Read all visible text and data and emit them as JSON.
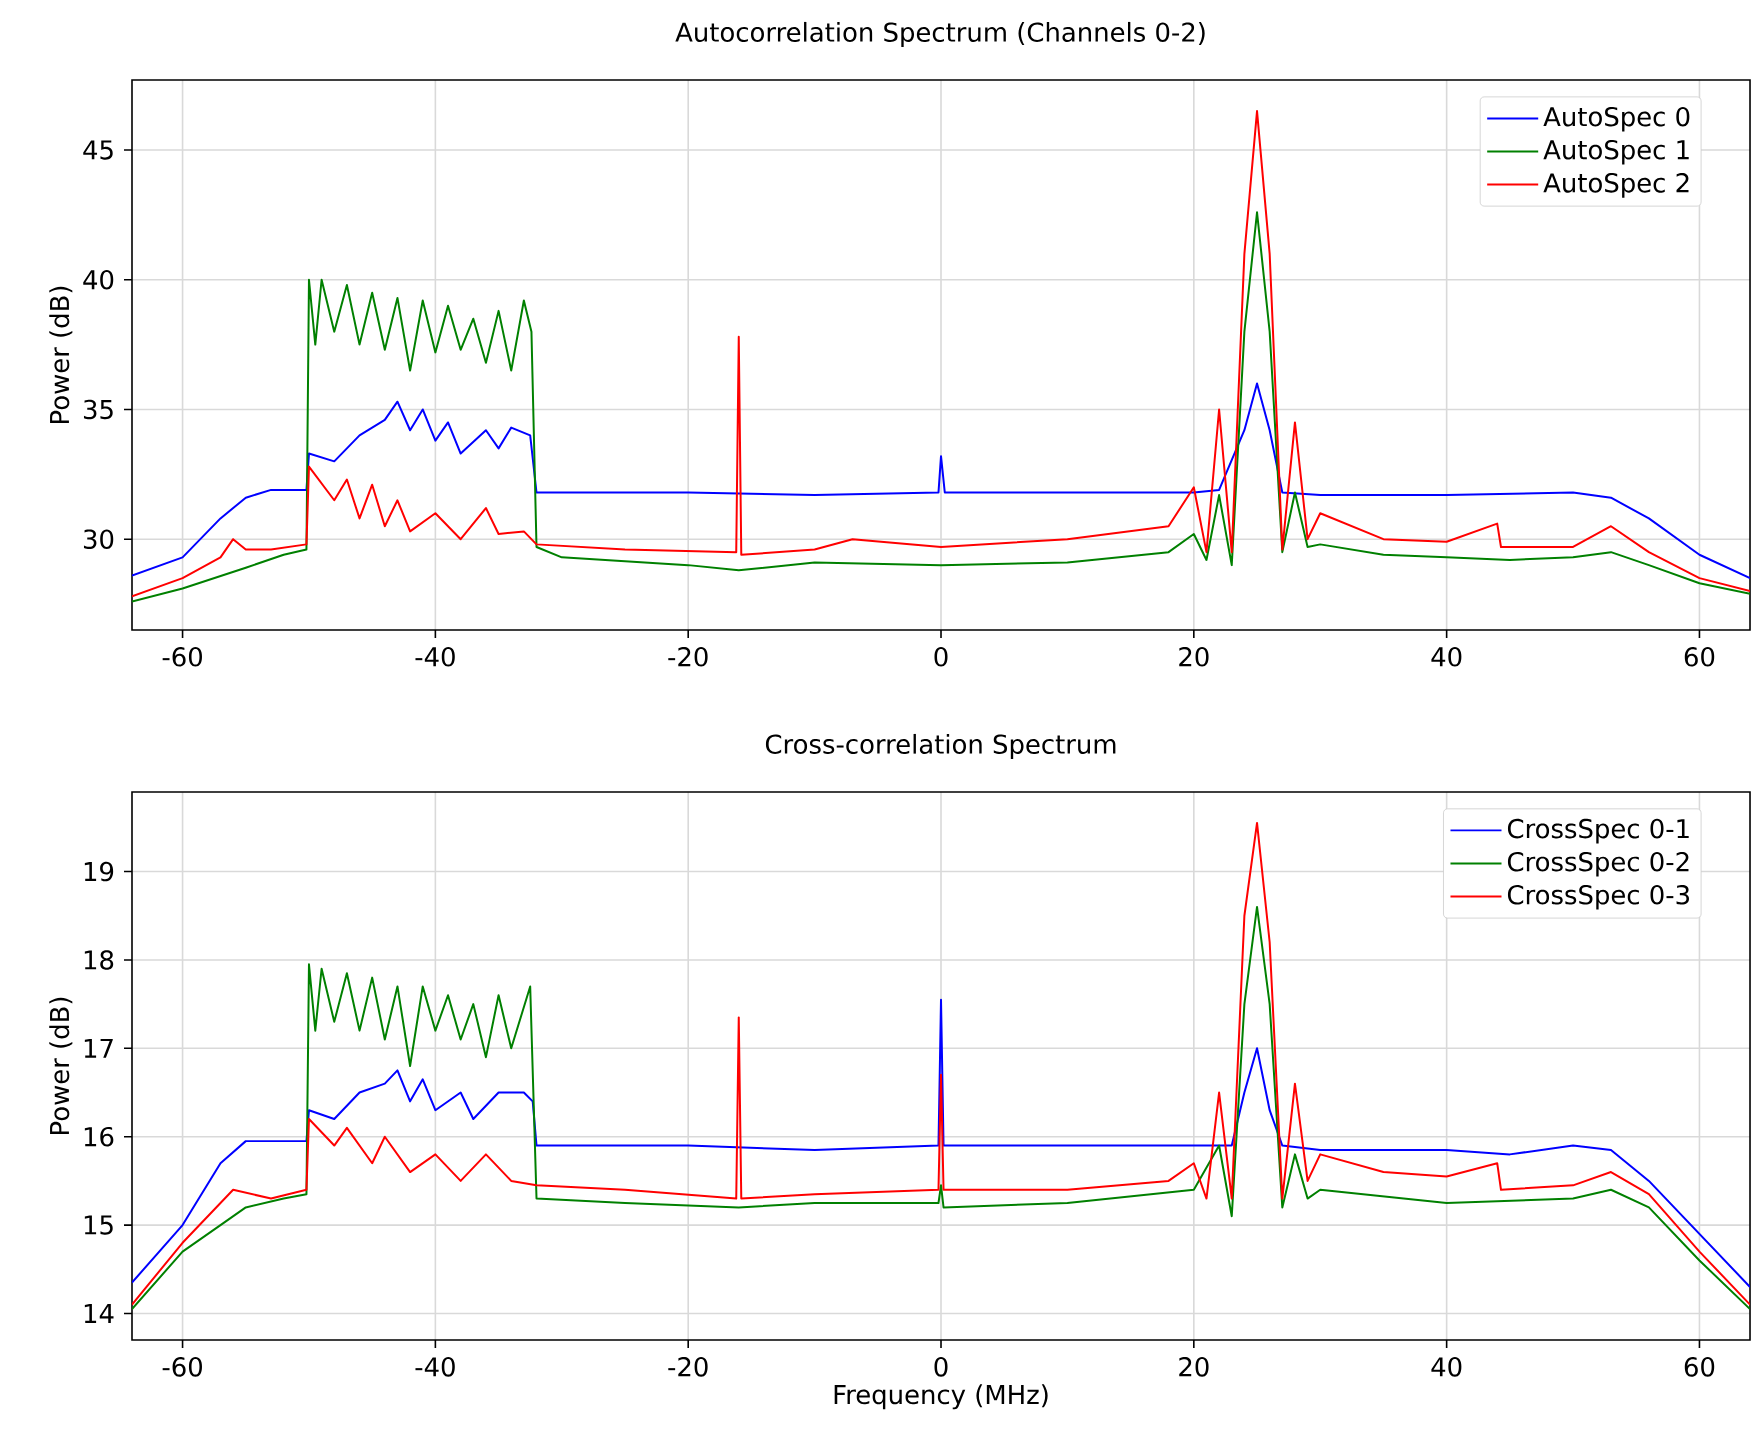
{
  "chart_data": [
    {
      "type": "line",
      "title": "Autocorrelation Spectrum (Channels 0-2)",
      "ylabel": "Power (dB)",
      "xlim": [
        -64,
        64
      ],
      "ylim": [
        26.5,
        47.7
      ],
      "xticks": [
        -60,
        -40,
        -20,
        0,
        20,
        40,
        60
      ],
      "yticks": [
        30,
        35,
        40,
        45
      ],
      "grid": true,
      "legend": "top right",
      "series": [
        {
          "name": "AutoSpec 0",
          "color": "#0000ff",
          "x": [
            -64,
            -60,
            -57,
            -55,
            -53,
            -50.2,
            -50,
            -48,
            -46,
            -44,
            -43,
            -42,
            -41,
            -40,
            -39,
            -38,
            -36,
            -35,
            -34,
            -32.5,
            -32,
            -20,
            -10,
            -0.2,
            0,
            0.3,
            10,
            20,
            22,
            24,
            25,
            26,
            27,
            30,
            40,
            50,
            53,
            56,
            60,
            64
          ],
          "values": [
            28.6,
            29.3,
            30.8,
            31.6,
            31.9,
            31.9,
            33.3,
            33.0,
            34.0,
            34.6,
            35.3,
            34.2,
            35.0,
            33.8,
            34.5,
            33.3,
            34.2,
            33.5,
            34.3,
            34.0,
            31.8,
            31.8,
            31.7,
            31.8,
            33.2,
            31.8,
            31.8,
            31.8,
            31.9,
            34.2,
            36.0,
            34.2,
            31.8,
            31.7,
            31.7,
            31.8,
            31.6,
            30.8,
            29.4,
            28.5
          ]
        },
        {
          "name": "AutoSpec 1",
          "color": "#008000",
          "x": [
            -64,
            -60,
            -55,
            -52,
            -50.2,
            -50,
            -49.5,
            -49,
            -48,
            -47,
            -46,
            -45,
            -44,
            -43,
            -42,
            -41,
            -40,
            -39,
            -38,
            -37,
            -36,
            -35,
            -34,
            -33,
            -32.4,
            -32,
            -30,
            -20,
            -16,
            -10,
            0,
            10,
            18,
            20,
            21,
            22,
            23,
            24,
            25,
            26,
            27,
            28,
            29,
            30,
            35,
            40,
            45,
            50,
            53,
            56,
            60,
            64
          ],
          "values": [
            27.6,
            28.1,
            28.9,
            29.4,
            29.6,
            40.0,
            37.5,
            40.0,
            38.0,
            39.8,
            37.5,
            39.5,
            37.3,
            39.3,
            36.5,
            39.2,
            37.2,
            39.0,
            37.3,
            38.5,
            36.8,
            38.8,
            36.5,
            39.2,
            38.0,
            29.7,
            29.3,
            29.0,
            28.8,
            29.1,
            29.0,
            29.1,
            29.5,
            30.2,
            29.2,
            31.7,
            29.0,
            38.0,
            42.6,
            38.0,
            29.5,
            31.8,
            29.7,
            29.8,
            29.4,
            29.3,
            29.2,
            29.3,
            29.5,
            29.0,
            28.3,
            27.9
          ]
        },
        {
          "name": "AutoSpec 2",
          "color": "#ff0000",
          "x": [
            -64,
            -60,
            -57,
            -56,
            -55,
            -53,
            -50.2,
            -50,
            -48,
            -47,
            -46,
            -45,
            -44,
            -43,
            -42,
            -40,
            -38,
            -36,
            -35,
            -33,
            -32,
            -25,
            -16.2,
            -16,
            -15.8,
            -10,
            -7,
            0,
            10,
            18,
            20,
            21,
            22,
            23,
            24,
            25,
            26,
            27,
            28,
            29,
            30,
            35,
            40,
            44,
            44.3,
            50,
            53,
            56,
            60,
            64
          ],
          "values": [
            27.8,
            28.5,
            29.3,
            30.0,
            29.6,
            29.6,
            29.8,
            32.8,
            31.5,
            32.3,
            30.8,
            32.1,
            30.5,
            31.5,
            30.3,
            31.0,
            30.0,
            31.2,
            30.2,
            30.3,
            29.8,
            29.6,
            29.5,
            37.8,
            29.4,
            29.6,
            30.0,
            29.7,
            30.0,
            30.5,
            32.0,
            29.5,
            35.0,
            29.5,
            41.0,
            46.5,
            41.0,
            29.6,
            34.5,
            30.0,
            31.0,
            30.0,
            29.9,
            30.6,
            29.7,
            29.7,
            30.5,
            29.5,
            28.5,
            28.0
          ]
        }
      ]
    },
    {
      "type": "line",
      "title": "Cross-correlation Spectrum",
      "xlabel": "Frequency (MHz)",
      "ylabel": "Power (dB)",
      "xlim": [
        -64,
        64
      ],
      "ylim": [
        13.7,
        19.9
      ],
      "xticks": [
        -60,
        -40,
        -20,
        0,
        20,
        40,
        60
      ],
      "yticks": [
        14,
        15,
        16,
        17,
        18,
        19
      ],
      "grid": true,
      "legend": "top right",
      "series": [
        {
          "name": "CrossSpec 0-1",
          "color": "#0000ff",
          "x": [
            -64,
            -60,
            -57,
            -55,
            -50.2,
            -50,
            -48,
            -46,
            -44,
            -43,
            -42,
            -41,
            -40,
            -38,
            -37,
            -35,
            -33,
            -32.3,
            -32,
            -20,
            -10,
            -0.2,
            0,
            0.2,
            10,
            20,
            23,
            24,
            25,
            26,
            27,
            30,
            40,
            45,
            50,
            53,
            56,
            60,
            64
          ],
          "values": [
            14.35,
            15.0,
            15.7,
            15.95,
            15.95,
            16.3,
            16.2,
            16.5,
            16.6,
            16.75,
            16.4,
            16.65,
            16.3,
            16.5,
            16.2,
            16.5,
            16.5,
            16.4,
            15.9,
            15.9,
            15.85,
            15.9,
            17.55,
            15.9,
            15.9,
            15.9,
            15.9,
            16.5,
            17.0,
            16.3,
            15.9,
            15.85,
            15.85,
            15.8,
            15.9,
            15.85,
            15.5,
            14.9,
            14.3
          ]
        },
        {
          "name": "CrossSpec 0-2",
          "color": "#008000",
          "x": [
            -64,
            -60,
            -57,
            -55,
            -52,
            -50.2,
            -50,
            -49.5,
            -49,
            -48,
            -47,
            -46,
            -45,
            -44,
            -43,
            -42,
            -41,
            -40,
            -39,
            -38,
            -37,
            -36,
            -35,
            -34,
            -32.5,
            -32,
            -25,
            -16,
            -10,
            -0.2,
            0,
            0.2,
            10,
            20,
            22,
            23,
            24,
            25,
            26,
            27,
            28,
            29,
            30,
            40,
            50,
            53,
            56,
            60,
            64
          ],
          "values": [
            14.05,
            14.7,
            15.0,
            15.2,
            15.3,
            15.35,
            17.95,
            17.2,
            17.9,
            17.3,
            17.85,
            17.2,
            17.8,
            17.1,
            17.7,
            16.8,
            17.7,
            17.2,
            17.6,
            17.1,
            17.5,
            16.9,
            17.6,
            17.0,
            17.7,
            15.3,
            15.25,
            15.2,
            15.25,
            15.25,
            15.45,
            15.2,
            15.25,
            15.4,
            15.9,
            15.1,
            17.5,
            18.6,
            17.5,
            15.2,
            15.8,
            15.3,
            15.4,
            15.25,
            15.3,
            15.4,
            15.2,
            14.6,
            14.05
          ]
        },
        {
          "name": "CrossSpec 0-3",
          "color": "#ff0000",
          "x": [
            -64,
            -60,
            -58,
            -56,
            -53,
            -50.2,
            -50,
            -48,
            -47,
            -45,
            -44,
            -42,
            -40,
            -38,
            -36,
            -34,
            -32,
            -25,
            -16.2,
            -16,
            -15.8,
            -10,
            -0.2,
            0,
            0.2,
            10,
            18,
            20,
            21,
            22,
            23,
            24,
            25,
            26,
            27,
            28,
            29,
            30,
            35,
            40,
            44,
            44.3,
            50,
            53,
            56,
            60,
            64
          ],
          "values": [
            14.1,
            14.8,
            15.1,
            15.4,
            15.3,
            15.4,
            16.2,
            15.9,
            16.1,
            15.7,
            16.0,
            15.6,
            15.8,
            15.5,
            15.8,
            15.5,
            15.45,
            15.4,
            15.3,
            17.35,
            15.3,
            15.35,
            15.4,
            16.7,
            15.4,
            15.4,
            15.5,
            15.7,
            15.3,
            16.5,
            15.3,
            18.5,
            19.55,
            18.2,
            15.3,
            16.6,
            15.5,
            15.8,
            15.6,
            15.55,
            15.7,
            15.4,
            15.45,
            15.6,
            15.35,
            14.7,
            14.1
          ]
        }
      ]
    }
  ]
}
